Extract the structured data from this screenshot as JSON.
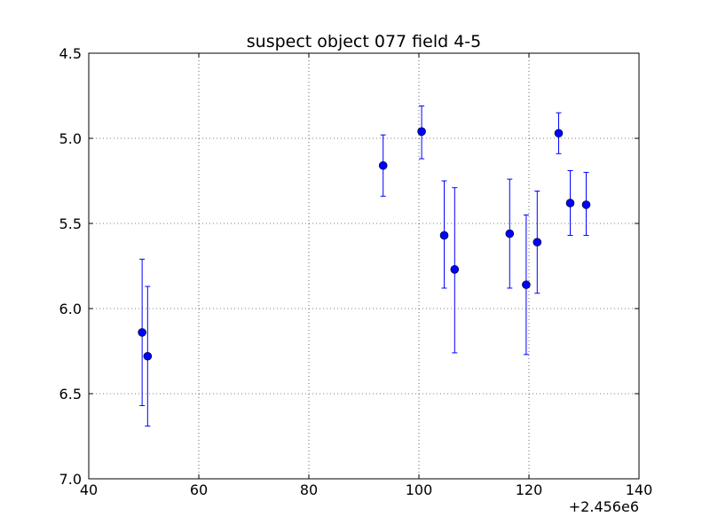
{
  "chart_data": {
    "type": "scatter",
    "title": "suspect object 077 field 4-5",
    "xlabel": "",
    "ylabel": "",
    "x_offset_label": "+2.456e6",
    "xlim": [
      40,
      140
    ],
    "ylim": [
      4.5,
      7.0
    ],
    "y_inverted": true,
    "x_ticks": [
      40,
      60,
      80,
      100,
      120,
      140
    ],
    "y_ticks": [
      4.5,
      5.0,
      5.5,
      6.0,
      6.5,
      7.0
    ],
    "x_tick_labels": [
      "40",
      "60",
      "80",
      "100",
      "120",
      "140"
    ],
    "y_tick_labels": [
      "4.5",
      "5.0",
      "5.5",
      "6.0",
      "6.5",
      "7.0"
    ],
    "grid": true,
    "marker_color": "#0000ff",
    "errorbar_color": "#0000ff",
    "points": [
      {
        "x": 49.7,
        "y": 6.14,
        "yerr_low": 5.71,
        "yerr_high": 6.57
      },
      {
        "x": 50.7,
        "y": 6.28,
        "yerr_low": 5.87,
        "yerr_high": 6.69
      },
      {
        "x": 93.5,
        "y": 5.16,
        "yerr_low": 4.98,
        "yerr_high": 5.34
      },
      {
        "x": 100.5,
        "y": 4.96,
        "yerr_low": 4.81,
        "yerr_high": 5.12
      },
      {
        "x": 104.6,
        "y": 5.57,
        "yerr_low": 5.25,
        "yerr_high": 5.88
      },
      {
        "x": 106.5,
        "y": 5.77,
        "yerr_low": 5.29,
        "yerr_high": 6.26
      },
      {
        "x": 116.5,
        "y": 5.56,
        "yerr_low": 5.24,
        "yerr_high": 5.88
      },
      {
        "x": 119.5,
        "y": 5.86,
        "yerr_low": 5.45,
        "yerr_high": 6.27
      },
      {
        "x": 121.5,
        "y": 5.61,
        "yerr_low": 5.31,
        "yerr_high": 5.91
      },
      {
        "x": 125.4,
        "y": 4.97,
        "yerr_low": 4.85,
        "yerr_high": 5.09
      },
      {
        "x": 127.5,
        "y": 5.38,
        "yerr_low": 5.19,
        "yerr_high": 5.57
      },
      {
        "x": 130.4,
        "y": 5.39,
        "yerr_low": 5.2,
        "yerr_high": 5.57
      }
    ]
  }
}
